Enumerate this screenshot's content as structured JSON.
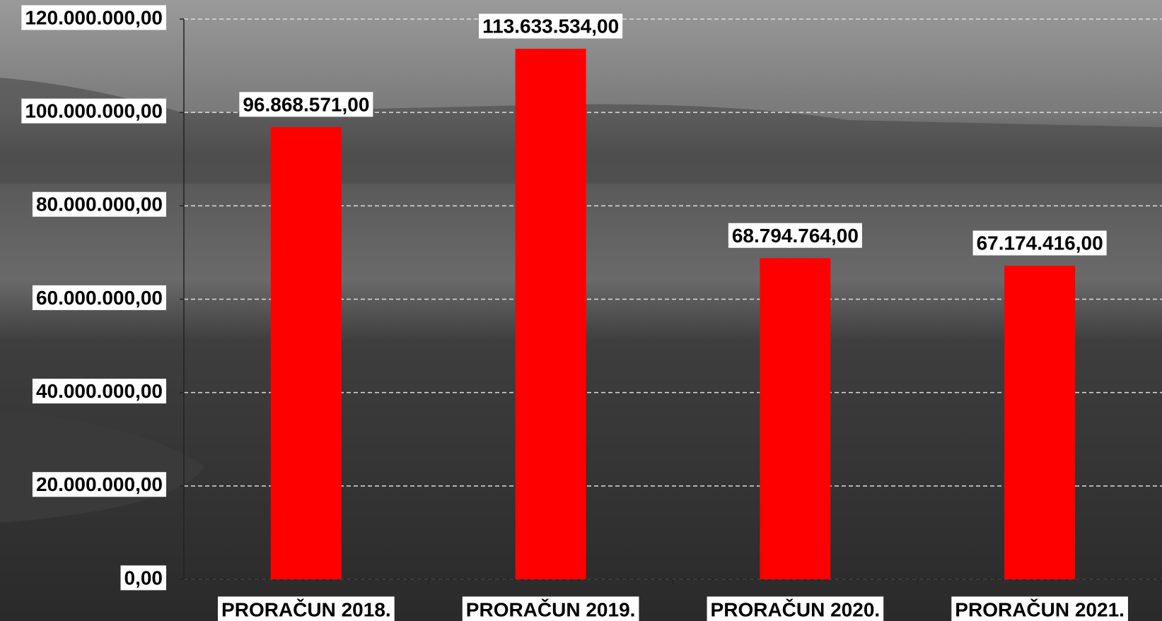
{
  "chart_data": {
    "type": "bar",
    "categories": [
      "PRORAČUN 2018.",
      "PRORAČUN 2019.",
      "PRORAČUN 2020.",
      "PRORAČUN 2021."
    ],
    "values": [
      96868571,
      113633534,
      68794764,
      67174416
    ],
    "value_labels": [
      "96.868.571,00",
      "113.633.534,00",
      "68.794.764,00",
      "67.174.416,00"
    ],
    "color": "#ff0000",
    "ylim": [
      0,
      120000000
    ],
    "yticks": [
      {
        "value": 0,
        "label": "0,00"
      },
      {
        "value": 20000000,
        "label": "20.000.000,00"
      },
      {
        "value": 40000000,
        "label": "40.000.000,00"
      },
      {
        "value": 60000000,
        "label": "60.000.000,00"
      },
      {
        "value": 80000000,
        "label": "80.000.000,00"
      },
      {
        "value": 100000000,
        "label": "100.000.000,00"
      },
      {
        "value": 120000000,
        "label": "120.000.000,00"
      }
    ],
    "grid": true
  }
}
